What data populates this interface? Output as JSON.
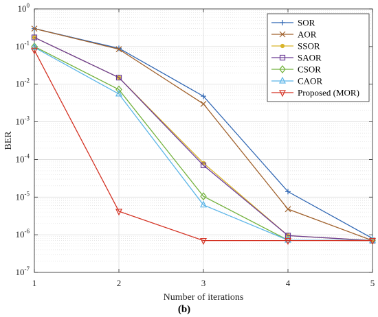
{
  "chart_data": {
    "type": "line",
    "xlabel": "Number of iterations",
    "ylabel": "BER",
    "panel_label": "(b)",
    "x": [
      1,
      2,
      3,
      4,
      5
    ],
    "x_ticks": [
      "1",
      "2",
      "3",
      "4",
      "5"
    ],
    "xlim": [
      1,
      5
    ],
    "ylim": [
      1e-07,
      1
    ],
    "y_scale": "log",
    "y_ticks": [
      {
        "base": "10",
        "exp": "0",
        "value": 1
      },
      {
        "base": "10",
        "exp": "-1",
        "value": 0.1
      },
      {
        "base": "10",
        "exp": "-2",
        "value": 0.01
      },
      {
        "base": "10",
        "exp": "-3",
        "value": 0.001
      },
      {
        "base": "10",
        "exp": "-4",
        "value": 0.0001
      },
      {
        "base": "10",
        "exp": "-5",
        "value": 1e-05
      },
      {
        "base": "10",
        "exp": "-6",
        "value": 1e-06
      },
      {
        "base": "10",
        "exp": "-7",
        "value": 1e-07
      }
    ],
    "grid": true,
    "minor_grid": true,
    "legend_position": "top-right",
    "series": [
      {
        "name": "SOR",
        "color": "#2f66b3",
        "marker": "plus",
        "values": [
          0.3,
          0.09,
          0.0048,
          1.4e-05,
          8e-07
        ]
      },
      {
        "name": "AOR",
        "color": "#a0612c",
        "marker": "cross",
        "values": [
          0.3,
          0.085,
          0.003,
          4.8e-06,
          7e-07
        ]
      },
      {
        "name": "SSOR",
        "color": "#d8b42a",
        "marker": "dot",
        "values": [
          0.175,
          0.015,
          8e-05,
          9.5e-07,
          7e-07
        ]
      },
      {
        "name": "SAOR",
        "color": "#6a3a95",
        "marker": "square",
        "values": [
          0.175,
          0.015,
          7e-05,
          9.5e-07,
          7e-07
        ]
      },
      {
        "name": "CSOR",
        "color": "#72b13c",
        "marker": "diamond",
        "values": [
          0.1,
          0.0072,
          1.05e-05,
          7.2e-07,
          7e-07
        ]
      },
      {
        "name": "CAOR",
        "color": "#5bb5e8",
        "marker": "triangle-up",
        "values": [
          0.095,
          0.0055,
          6.2e-06,
          7.2e-07,
          7e-07
        ]
      },
      {
        "name": "Proposed (MOR)",
        "color": "#d43324",
        "marker": "triangle-down",
        "values": [
          0.08,
          4.2e-06,
          7e-07,
          7e-07,
          7e-07
        ]
      }
    ]
  }
}
